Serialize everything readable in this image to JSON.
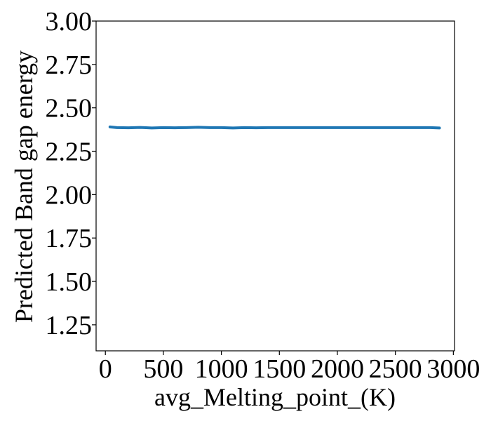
{
  "chart_data": {
    "type": "line",
    "title": "",
    "xlabel": "avg_Melting_point_(K)",
    "ylabel": "Predicted Band gap energy",
    "xlim": [
      -80,
      3010
    ],
    "ylim": [
      1.1,
      3.0
    ],
    "xticks": [
      0,
      500,
      1000,
      1500,
      2000,
      2500,
      3000
    ],
    "xtick_labels": [
      "0",
      "500",
      "1000",
      "1500",
      "2000",
      "2500",
      "3000"
    ],
    "yticks": [
      1.25,
      1.5,
      1.75,
      2.0,
      2.25,
      2.5,
      2.75,
      3.0
    ],
    "ytick_labels": [
      "1.25",
      "1.50",
      "1.75",
      "2.00",
      "2.25",
      "2.50",
      "2.75",
      "3.00"
    ],
    "grid": false,
    "legend": "none",
    "series": [
      {
        "color": "#1f77b4",
        "x": [
          40,
          100,
          200,
          300,
          400,
          500,
          600,
          700,
          800,
          900,
          1000,
          1100,
          1200,
          1300,
          1400,
          1500,
          1600,
          1700,
          1800,
          1900,
          2000,
          2100,
          2200,
          2300,
          2400,
          2500,
          2600,
          2700,
          2800,
          2880
        ],
        "y": [
          2.39,
          2.386,
          2.385,
          2.387,
          2.384,
          2.386,
          2.385,
          2.386,
          2.388,
          2.386,
          2.386,
          2.384,
          2.386,
          2.385,
          2.386,
          2.386,
          2.386,
          2.386,
          2.386,
          2.386,
          2.386,
          2.386,
          2.386,
          2.386,
          2.386,
          2.386,
          2.386,
          2.386,
          2.386,
          2.384
        ]
      }
    ]
  }
}
